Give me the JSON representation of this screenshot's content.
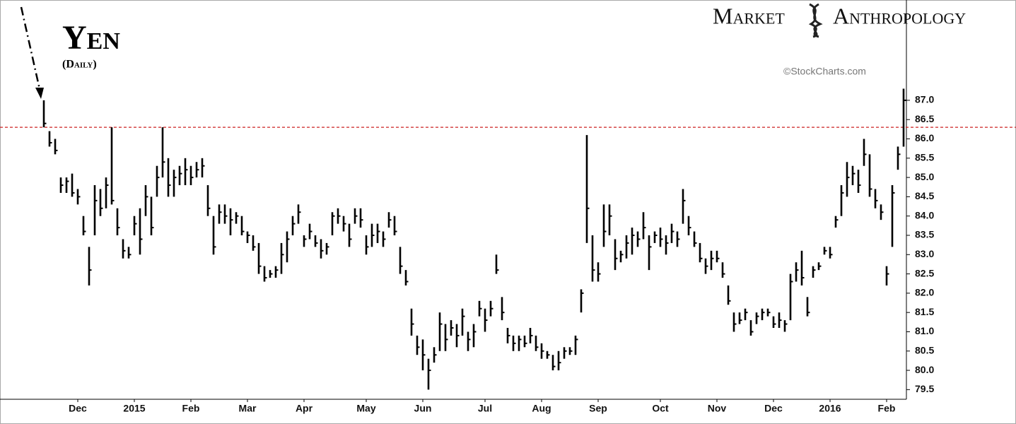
{
  "chart_data": {
    "type": "ohlc",
    "title": "Yen",
    "subtitle": "(Daily)",
    "brand": [
      "Market",
      "Anthropology"
    ],
    "source": "©StockCharts.com",
    "color": "#000000",
    "reference_line": 86.3,
    "reference_color": "#cc2222",
    "ylim": [
      79.25,
      89.6
    ],
    "yticks": [
      79.5,
      {
        "value": 80,
        "label": "80.0"
      },
      80.5,
      {
        "value": 81,
        "label": "81.0"
      },
      81.5,
      {
        "value": 82,
        "label": "82.0"
      },
      82.5,
      {
        "value": 83,
        "label": "83.0"
      },
      83.5,
      {
        "value": 84,
        "label": "84.0"
      },
      84.5,
      {
        "value": 85,
        "label": "85.0"
      },
      85.5,
      {
        "value": 86,
        "label": "86.0"
      },
      86.5,
      {
        "value": 87,
        "label": "87.0"
      }
    ],
    "categories": [
      null,
      null,
      null,
      null,
      null,
      null,
      "Dec",
      null,
      null,
      null,
      null,
      null,
      null,
      null,
      null,
      null,
      "2015",
      null,
      null,
      null,
      null,
      null,
      null,
      null,
      null,
      null,
      "Feb",
      null,
      null,
      null,
      null,
      null,
      null,
      null,
      null,
      null,
      "Mar",
      null,
      null,
      null,
      null,
      null,
      null,
      null,
      null,
      null,
      "Apr",
      null,
      null,
      null,
      null,
      null,
      null,
      null,
      null,
      null,
      null,
      "May",
      null,
      null,
      null,
      null,
      null,
      null,
      null,
      null,
      null,
      "Jun",
      null,
      null,
      null,
      null,
      null,
      null,
      null,
      null,
      null,
      null,
      "Jul",
      null,
      null,
      null,
      null,
      null,
      null,
      null,
      null,
      null,
      "Aug",
      null,
      null,
      null,
      null,
      null,
      null,
      null,
      null,
      null,
      "Sep",
      null,
      null,
      null,
      null,
      null,
      null,
      null,
      null,
      null,
      null,
      "Oct",
      null,
      null,
      null,
      null,
      null,
      null,
      null,
      null,
      null,
      "Nov",
      null,
      null,
      null,
      null,
      null,
      null,
      null,
      null,
      null,
      "Dec",
      null,
      null,
      null,
      null,
      null,
      null,
      null,
      null,
      null,
      "2016",
      null,
      null,
      null,
      null,
      null,
      null,
      null,
      null,
      null,
      "Feb",
      null,
      null,
      null
    ],
    "high": [
      87.0,
      86.2,
      86.0,
      85.0,
      85.0,
      85.1,
      84.7,
      84.0,
      83.2,
      84.8,
      84.7,
      85.0,
      86.3,
      84.2,
      83.4,
      83.2,
      84.0,
      84.2,
      84.8,
      84.5,
      85.3,
      86.3,
      85.5,
      85.2,
      85.3,
      85.5,
      85.3,
      85.4,
      85.5,
      84.8,
      84.0,
      84.3,
      84.3,
      84.2,
      84.1,
      84.0,
      83.6,
      83.5,
      83.3,
      82.7,
      82.6,
      82.7,
      83.3,
      83.6,
      84.0,
      84.3,
      83.5,
      83.8,
      83.5,
      83.4,
      83.3,
      84.1,
      84.2,
      84.0,
      83.8,
      84.2,
      84.2,
      83.5,
      83.8,
      83.8,
      83.6,
      84.1,
      84.0,
      83.2,
      82.6,
      81.6,
      80.9,
      80.8,
      80.3,
      80.6,
      81.5,
      81.2,
      81.3,
      81.2,
      81.6,
      81.0,
      81.2,
      81.8,
      81.6,
      81.8,
      83.0,
      81.9,
      81.1,
      80.9,
      80.9,
      80.9,
      81.1,
      80.9,
      80.7,
      80.5,
      80.4,
      80.5,
      80.6,
      80.6,
      80.9,
      82.1,
      86.1,
      83.5,
      82.8,
      84.3,
      84.3,
      83.4,
      83.1,
      83.5,
      83.7,
      83.6,
      84.1,
      83.5,
      83.6,
      83.7,
      83.5,
      83.8,
      83.6,
      84.7,
      84.0,
      83.6,
      83.3,
      82.9,
      83.1,
      83.1,
      82.8,
      82.2,
      81.5,
      81.5,
      81.6,
      81.3,
      81.5,
      81.6,
      81.6,
      81.4,
      81.5,
      81.3,
      82.5,
      82.8,
      83.1,
      81.9,
      82.7,
      82.8,
      83.2,
      83.2,
      84.0,
      84.8,
      85.4,
      85.3,
      85.2,
      86.0,
      85.6,
      84.7,
      84.3,
      82.7,
      84.8,
      85.8,
      87.3
    ],
    "low": [
      86.3,
      85.8,
      85.6,
      84.6,
      84.6,
      84.5,
      84.3,
      83.5,
      82.2,
      83.5,
      84.0,
      84.2,
      84.3,
      83.5,
      82.9,
      82.9,
      83.5,
      83.0,
      84.0,
      83.5,
      84.5,
      85.0,
      84.5,
      84.5,
      84.8,
      84.8,
      84.8,
      85.0,
      85.0,
      84.0,
      83.0,
      83.8,
      83.8,
      83.5,
      83.8,
      83.5,
      83.3,
      83.1,
      82.5,
      82.3,
      82.4,
      82.4,
      82.5,
      82.8,
      83.5,
      83.8,
      83.2,
      83.4,
      83.2,
      82.9,
      83.0,
      83.5,
      83.8,
      83.6,
      83.2,
      83.8,
      83.7,
      83.0,
      83.2,
      83.3,
      83.2,
      83.7,
      83.5,
      82.5,
      82.2,
      80.9,
      80.4,
      80.0,
      79.5,
      80.2,
      80.5,
      80.5,
      80.9,
      80.6,
      80.9,
      80.5,
      80.6,
      81.4,
      81.0,
      81.4,
      82.5,
      81.3,
      80.7,
      80.5,
      80.5,
      80.6,
      80.7,
      80.5,
      80.3,
      80.3,
      80.0,
      80.0,
      80.3,
      80.4,
      80.4,
      81.5,
      83.3,
      82.3,
      82.3,
      83.2,
      83.5,
      82.6,
      82.8,
      82.9,
      83.0,
      83.2,
      83.4,
      82.6,
      83.3,
      83.2,
      83.0,
      83.3,
      83.2,
      83.8,
      83.5,
      83.2,
      82.8,
      82.5,
      82.6,
      82.8,
      82.4,
      81.7,
      81.0,
      81.2,
      81.3,
      80.9,
      81.2,
      81.3,
      81.4,
      81.1,
      81.1,
      81.0,
      81.3,
      82.3,
      82.2,
      81.4,
      82.4,
      82.6,
      83.0,
      82.9,
      83.7,
      84.0,
      84.5,
      84.8,
      84.6,
      85.3,
      84.5,
      84.2,
      83.9,
      82.2,
      83.2,
      85.2,
      85.8
    ],
    "close": [
      86.4,
      85.9,
      85.7,
      84.8,
      84.9,
      84.6,
      84.5,
      83.6,
      82.6,
      84.4,
      84.2,
      84.8,
      84.4,
      83.7,
      83.1,
      83.0,
      83.8,
      83.4,
      84.5,
      83.7,
      85.0,
      85.4,
      84.8,
      85.0,
      85.1,
      85.2,
      85.0,
      85.2,
      85.3,
      84.2,
      83.2,
      84.1,
      84.0,
      83.9,
      84.0,
      83.6,
      83.5,
      83.2,
      82.7,
      82.4,
      82.5,
      82.6,
      83.0,
      83.4,
      83.8,
      84.1,
      83.4,
      83.6,
      83.3,
      83.1,
      83.2,
      84.0,
      84.0,
      83.8,
      83.4,
      84.0,
      83.9,
      83.2,
      83.5,
      83.6,
      83.4,
      83.9,
      83.6,
      82.7,
      82.3,
      81.2,
      80.6,
      80.4,
      80.0,
      80.4,
      81.2,
      80.8,
      81.1,
      80.9,
      81.4,
      80.8,
      81.0,
      81.6,
      81.3,
      81.6,
      82.6,
      81.5,
      80.9,
      80.7,
      80.8,
      80.7,
      80.9,
      80.6,
      80.5,
      80.4,
      80.1,
      80.2,
      80.5,
      80.5,
      80.8,
      82.0,
      84.2,
      82.6,
      82.5,
      83.6,
      84.0,
      82.9,
      83.0,
      83.3,
      83.5,
      83.4,
      83.7,
      83.2,
      83.5,
      83.4,
      83.3,
      83.6,
      83.4,
      84.4,
      83.7,
      83.3,
      82.9,
      82.7,
      82.9,
      82.9,
      82.5,
      81.8,
      81.2,
      81.3,
      81.5,
      81.0,
      81.4,
      81.5,
      81.5,
      81.2,
      81.3,
      81.2,
      82.3,
      82.6,
      82.4,
      81.5,
      82.6,
      82.7,
      83.1,
      83.0,
      83.9,
      84.6,
      85.0,
      85.1,
      84.8,
      85.6,
      84.7,
      84.4,
      84.1,
      82.5,
      84.6,
      85.6,
      87.0
    ]
  }
}
